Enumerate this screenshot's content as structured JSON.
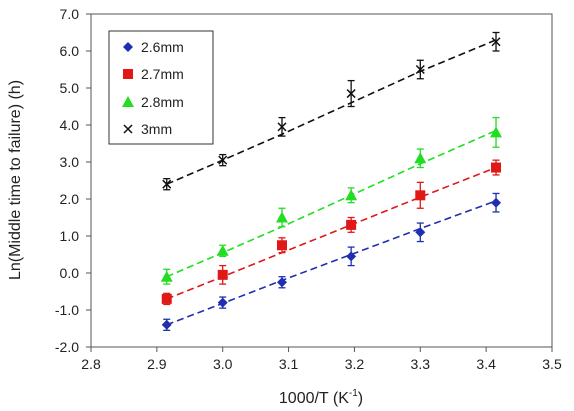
{
  "chart_data": {
    "type": "scatter",
    "xlabel": "1000/T (K",
    "xlabel_sup": "-1",
    "xlabel_end": ")",
    "ylabel": "Ln(Middle time to failure) (h)",
    "xlim": [
      2.8,
      3.5
    ],
    "ylim": [
      -2.0,
      7.0
    ],
    "x_ticks": [
      "2.8",
      "2.9",
      "3.0",
      "3.1",
      "3.2",
      "3.3",
      "3.4",
      "3.5"
    ],
    "y_ticks": [
      "-2.0",
      "-1.0",
      "0.0",
      "1.0",
      "2.0",
      "3.0",
      "4.0",
      "5.0",
      "6.0",
      "7.0"
    ],
    "grid": false,
    "legend_position": "top-left",
    "x": [
      2.915,
      3.0,
      3.09,
      3.195,
      3.3,
      3.415
    ],
    "series": [
      {
        "name": "2.6mm",
        "marker": "diamond",
        "color": "#1f2fb0",
        "values": [
          -1.4,
          -0.8,
          -0.25,
          0.45,
          1.1,
          1.9
        ],
        "errors": [
          0.15,
          0.15,
          0.15,
          0.25,
          0.25,
          0.25
        ],
        "fit": [
          -1.4,
          -0.82,
          -0.2,
          0.5,
          1.2,
          1.95
        ]
      },
      {
        "name": "2.7mm",
        "marker": "square",
        "color": "#e01818",
        "values": [
          -0.7,
          -0.05,
          0.75,
          1.3,
          2.1,
          2.85
        ],
        "errors": [
          0.15,
          0.25,
          0.2,
          0.2,
          0.35,
          0.2
        ],
        "fit": [
          -0.7,
          -0.1,
          0.55,
          1.3,
          2.05,
          2.85
        ]
      },
      {
        "name": "2.8mm",
        "marker": "triangle",
        "color": "#22dd22",
        "values": [
          -0.1,
          0.6,
          1.5,
          2.1,
          3.1,
          3.8
        ],
        "errors": [
          0.2,
          0.15,
          0.25,
          0.2,
          0.25,
          0.4
        ],
        "fit": [
          -0.1,
          0.55,
          1.25,
          2.1,
          2.95,
          3.85
        ]
      },
      {
        "name": "3mm",
        "marker": "x",
        "color": "#111111",
        "values": [
          2.4,
          3.05,
          3.95,
          4.85,
          5.5,
          6.25
        ],
        "errors": [
          0.15,
          0.15,
          0.25,
          0.35,
          0.25,
          0.25
        ],
        "fit": [
          2.4,
          3.05,
          3.75,
          4.6,
          5.45,
          6.3
        ]
      }
    ]
  }
}
